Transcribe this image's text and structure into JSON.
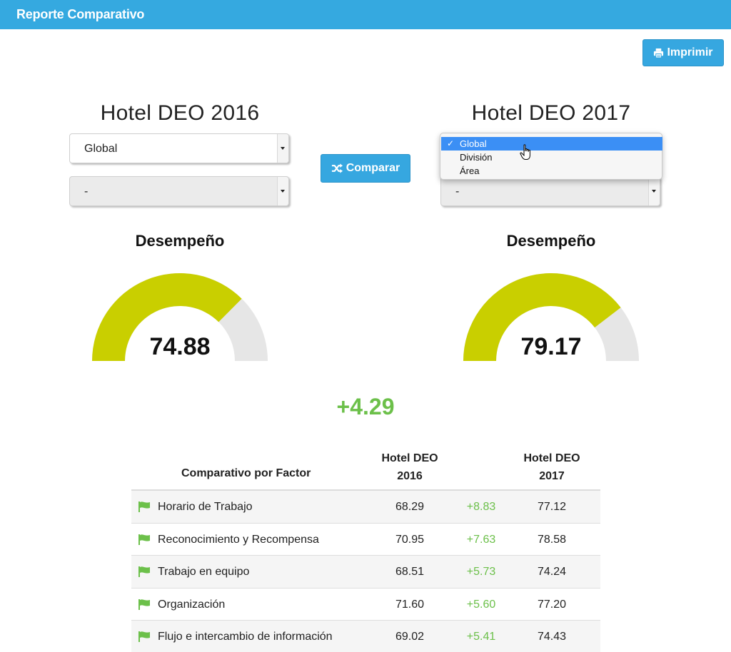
{
  "header": {
    "title": "Reporte Comparativo"
  },
  "toolbar": {
    "print_label": "Imprimir"
  },
  "left": {
    "title": "Hotel DEO 2016",
    "select1_value": "Global",
    "select2_value": "-",
    "gauge_title": "Desempeño",
    "gauge_value": "74.88"
  },
  "right": {
    "title": "Hotel DEO 2017",
    "select2_value": "-",
    "dropdown_options": [
      "Global",
      "División",
      "Área"
    ],
    "dropdown_selected": "Global",
    "gauge_title": "Desempeño",
    "gauge_value": "79.17"
  },
  "compare": {
    "label": "Comparar"
  },
  "difference": "+4.29",
  "table": {
    "header_factor": "Comparativo por Factor",
    "header_year1": "Hotel DEO 2016",
    "header_year2": "Hotel DEO 2017",
    "rows": [
      {
        "name": "Horario de Trabajo",
        "v1": "68.29",
        "diff": "+8.83",
        "v2": "77.12"
      },
      {
        "name": "Reconocimiento y Recompensa",
        "v1": "70.95",
        "diff": "+7.63",
        "v2": "78.58"
      },
      {
        "name": "Trabajo en equipo",
        "v1": "68.51",
        "diff": "+5.73",
        "v2": "74.24"
      },
      {
        "name": "Organización",
        "v1": "71.60",
        "diff": "+5.60",
        "v2": "77.20"
      },
      {
        "name": "Flujo e intercambio de información",
        "v1": "69.02",
        "diff": "+5.41",
        "v2": "74.43"
      }
    ]
  },
  "colors": {
    "brand": "#35a9e0",
    "gauge_fill": "#c9cf00",
    "gauge_track": "#e6e6e6",
    "positive": "#6cc04a"
  }
}
